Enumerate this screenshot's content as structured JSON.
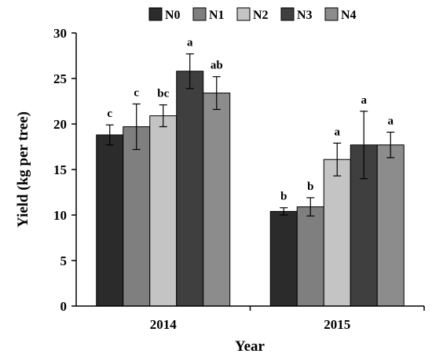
{
  "chart_data": {
    "type": "bar",
    "xlabel": "Year",
    "ylabel": "Yield (kg per tree)",
    "ylim": [
      0,
      30
    ],
    "yticks": [
      0,
      5,
      10,
      15,
      20,
      25,
      30
    ],
    "legend_position": "top",
    "categories": [
      "2014",
      "2015"
    ],
    "series": [
      {
        "name": "N0",
        "color": "#2b2b2b",
        "values": [
          18.8,
          10.4
        ],
        "errors": [
          1.1,
          0.4
        ],
        "letters": [
          "c",
          "b"
        ]
      },
      {
        "name": "N1",
        "color": "#7f7f7f",
        "values": [
          19.7,
          10.9
        ],
        "errors": [
          2.5,
          1.0
        ],
        "letters": [
          "c",
          "b"
        ]
      },
      {
        "name": "N2",
        "color": "#c4c4c4",
        "values": [
          20.9,
          16.1
        ],
        "errors": [
          1.2,
          1.8
        ],
        "letters": [
          "bc",
          "a"
        ]
      },
      {
        "name": "N3",
        "color": "#3f3f3f",
        "values": [
          25.8,
          17.7
        ],
        "errors": [
          1.9,
          3.7
        ],
        "letters": [
          "a",
          "a"
        ]
      },
      {
        "name": "N4",
        "color": "#8c8c8c",
        "values": [
          23.4,
          17.7
        ],
        "errors": [
          1.8,
          1.4
        ],
        "letters": [
          "ab",
          "a"
        ]
      }
    ]
  }
}
